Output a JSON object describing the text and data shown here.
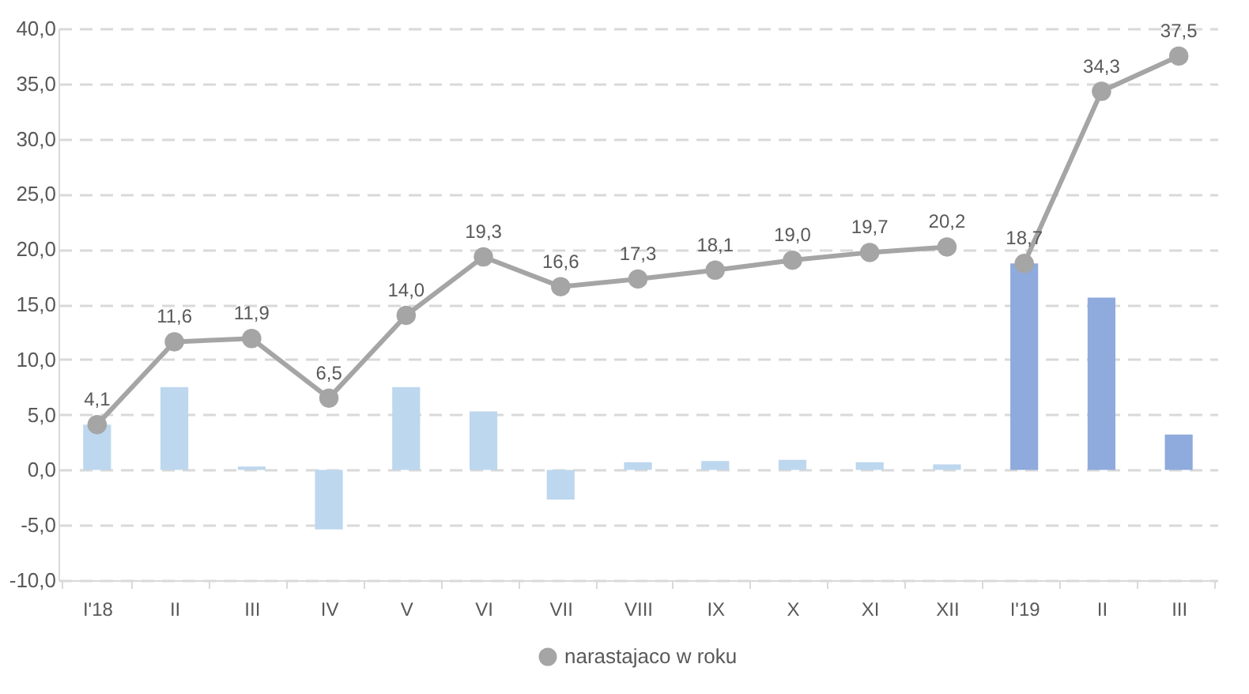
{
  "chart_data": {
    "type": "bar",
    "categories": [
      "I'18",
      "II",
      "III",
      "IV",
      "V",
      "VI",
      "VII",
      "VIII",
      "IX",
      "X",
      "XI",
      "XII",
      "I'19",
      "II",
      "III"
    ],
    "values": [
      4.1,
      7.5,
      0.3,
      -5.4,
      7.5,
      5.3,
      -2.7,
      0.7,
      0.8,
      0.9,
      0.7,
      0.5,
      18.7,
      15.6,
      3.2
    ],
    "colors": [
      "#bdd7ee",
      "#bdd7ee",
      "#bdd7ee",
      "#bdd7ee",
      "#bdd7ee",
      "#bdd7ee",
      "#bdd7ee",
      "#bdd7ee",
      "#bdd7ee",
      "#bdd7ee",
      "#bdd7ee",
      "#bdd7ee",
      "#8faadc",
      "#8faadc",
      "#8faadc"
    ],
    "series": [
      {
        "type": "line",
        "name": "narastajaco w roku",
        "color": "#a5a5a5",
        "values": [
          4.1,
          11.6,
          11.9,
          6.5,
          14.0,
          19.3,
          16.6,
          17.3,
          18.1,
          19.0,
          19.7,
          20.2,
          null,
          null,
          null
        ],
        "value_labels": [
          "4,1",
          "11,6",
          "11,9",
          "6,5",
          "14,0",
          "19,3",
          "16,6",
          "17,3",
          "18,1",
          "19,0",
          "19,7",
          "20,2",
          null,
          null,
          null
        ]
      },
      {
        "type": "line",
        "color": "#a5a5a5",
        "values": [
          null,
          null,
          null,
          null,
          null,
          null,
          null,
          null,
          null,
          null,
          null,
          null,
          18.7,
          34.3,
          37.5
        ],
        "value_labels": [
          null,
          null,
          null,
          null,
          null,
          null,
          null,
          null,
          null,
          null,
          null,
          null,
          "18,7",
          "34,3",
          "37,5"
        ]
      }
    ],
    "ylim": [
      -10,
      40
    ],
    "yticks": [
      {
        "value": -10,
        "label": "-10,0"
      },
      {
        "value": -5,
        "label": "-5,0"
      },
      {
        "value": 0,
        "label": "0,0"
      },
      {
        "value": 5,
        "label": "5,0"
      },
      {
        "value": 10,
        "label": "10,0"
      },
      {
        "value": 15,
        "label": "15,0"
      },
      {
        "value": 20,
        "label": "20,0"
      },
      {
        "value": 25,
        "label": "25,0"
      },
      {
        "value": 30,
        "label": "30,0"
      },
      {
        "value": 35,
        "label": "35,0"
      },
      {
        "value": 40,
        "label": "40,0"
      }
    ],
    "grid": "y",
    "legend": "bottom",
    "marker": "circle",
    "line_style": "solid"
  }
}
